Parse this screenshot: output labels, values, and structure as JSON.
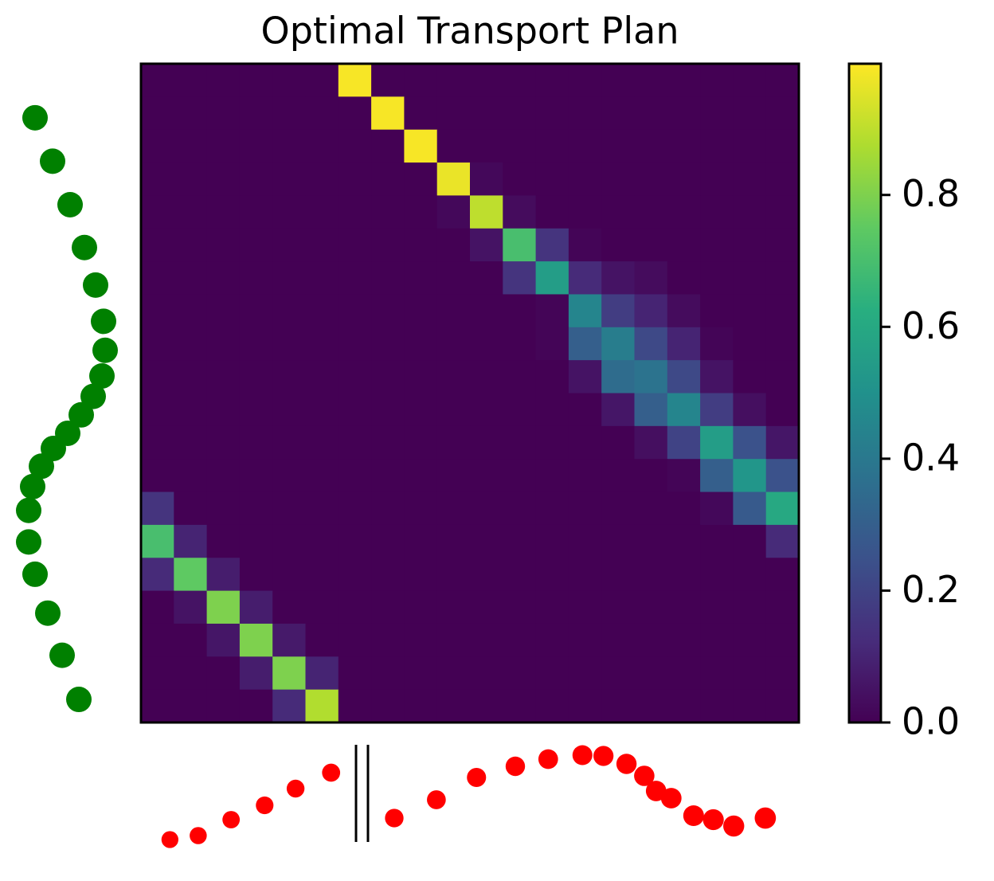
{
  "chart_data": {
    "type": "heatmap",
    "title": "Optimal Transport Plan",
    "matrix": [
      [
        0,
        0,
        0,
        0,
        0,
        0,
        0.99,
        0,
        0,
        0,
        0,
        0,
        0,
        0,
        0,
        0,
        0,
        0,
        0,
        0
      ],
      [
        0,
        0,
        0,
        0,
        0,
        0,
        0,
        0.99,
        0,
        0,
        0,
        0,
        0,
        0,
        0,
        0,
        0,
        0,
        0,
        0
      ],
      [
        0,
        0,
        0,
        0,
        0,
        0,
        0,
        0,
        0.99,
        0,
        0,
        0,
        0,
        0,
        0,
        0,
        0,
        0,
        0,
        0
      ],
      [
        0,
        0,
        0,
        0,
        0,
        0,
        0,
        0,
        0,
        0.97,
        0.02,
        0,
        0,
        0,
        0,
        0,
        0,
        0,
        0,
        0
      ],
      [
        0,
        0,
        0,
        0,
        0,
        0,
        0,
        0,
        0,
        0.02,
        0.9,
        0.03,
        0,
        0,
        0,
        0,
        0,
        0,
        0,
        0
      ],
      [
        0,
        0,
        0,
        0,
        0,
        0,
        0,
        0,
        0,
        0,
        0.05,
        0.7,
        0.15,
        0.01,
        0,
        0,
        0,
        0,
        0,
        0
      ],
      [
        0,
        0,
        0,
        0,
        0,
        0,
        0,
        0,
        0,
        0,
        0,
        0.15,
        0.55,
        0.12,
        0.05,
        0.03,
        0,
        0,
        0,
        0
      ],
      [
        0,
        0,
        0,
        0,
        0,
        0,
        0,
        0,
        0,
        0,
        0,
        0,
        0.01,
        0.45,
        0.18,
        0.1,
        0.03,
        0,
        0,
        0
      ],
      [
        0,
        0,
        0,
        0,
        0,
        0,
        0,
        0,
        0,
        0,
        0,
        0,
        0.01,
        0.3,
        0.42,
        0.22,
        0.1,
        0.01,
        0,
        0
      ],
      [
        0,
        0,
        0,
        0,
        0,
        0,
        0,
        0,
        0,
        0,
        0,
        0,
        0,
        0.05,
        0.35,
        0.38,
        0.22,
        0.05,
        0,
        0
      ],
      [
        0,
        0,
        0,
        0,
        0,
        0,
        0,
        0,
        0,
        0,
        0,
        0,
        0,
        0,
        0.06,
        0.3,
        0.45,
        0.18,
        0.04,
        0
      ],
      [
        0,
        0,
        0,
        0,
        0,
        0,
        0,
        0,
        0,
        0,
        0,
        0,
        0,
        0,
        0,
        0.04,
        0.2,
        0.55,
        0.25,
        0.06
      ],
      [
        0,
        0,
        0,
        0,
        0,
        0,
        0,
        0,
        0,
        0,
        0,
        0,
        0,
        0,
        0,
        0,
        0.01,
        0.3,
        0.52,
        0.25
      ],
      [
        0.15,
        0,
        0,
        0,
        0,
        0,
        0,
        0,
        0,
        0,
        0,
        0,
        0,
        0,
        0,
        0,
        0,
        0.02,
        0.28,
        0.6
      ],
      [
        0.7,
        0.1,
        0,
        0,
        0,
        0,
        0,
        0,
        0,
        0,
        0,
        0,
        0,
        0,
        0,
        0,
        0,
        0,
        0,
        0.12
      ],
      [
        0.12,
        0.75,
        0.08,
        0,
        0,
        0,
        0,
        0,
        0,
        0,
        0,
        0,
        0,
        0,
        0,
        0,
        0,
        0,
        0,
        0
      ],
      [
        0,
        0.05,
        0.8,
        0.08,
        0,
        0,
        0,
        0,
        0,
        0,
        0,
        0,
        0,
        0,
        0,
        0,
        0,
        0,
        0,
        0
      ],
      [
        0,
        0,
        0.06,
        0.8,
        0.07,
        0,
        0,
        0,
        0,
        0,
        0,
        0,
        0,
        0,
        0,
        0,
        0,
        0,
        0,
        0
      ],
      [
        0,
        0,
        0,
        0.08,
        0.8,
        0.1,
        0,
        0,
        0,
        0,
        0,
        0,
        0,
        0,
        0,
        0,
        0,
        0,
        0,
        0
      ],
      [
        0,
        0,
        0,
        0,
        0.12,
        0.88,
        0,
        0,
        0,
        0,
        0,
        0,
        0,
        0,
        0,
        0,
        0,
        0,
        0,
        0
      ]
    ],
    "clim": [
      0,
      0.999
    ],
    "cticks": [
      {
        "value": 0,
        "label": "0.0"
      },
      0.2,
      0.4,
      0.6,
      0.8
    ],
    "colormap": "viridis",
    "source": {
      "color": "#008000",
      "positions": [
        0.082,
        0.148,
        0.214,
        0.279,
        0.336,
        0.391,
        0.435,
        0.474,
        0.505,
        0.533,
        0.561,
        0.584,
        0.611,
        0.642,
        0.678,
        0.726,
        0.775,
        0.834,
        0.898,
        0.965
      ],
      "weights": [
        0.24,
        0.46,
        0.68,
        0.86,
        1.0,
        1.1,
        1.12,
        1.08,
        0.97,
        0.82,
        0.65,
        0.47,
        0.32,
        0.21,
        0.16,
        0.16,
        0.24,
        0.4,
        0.58,
        0.79
      ]
    },
    "target": {
      "color": "#ff0000",
      "positions": [
        0.044,
        0.087,
        0.137,
        0.188,
        0.235,
        0.289,
        0.385,
        0.449,
        0.51,
        0.569,
        0.619,
        0.671,
        0.703,
        0.738,
        0.765,
        0.783,
        0.806,
        0.84,
        0.87,
        0.901,
        0.949
      ],
      "weights": [
        0.06,
        0.11,
        0.31,
        0.49,
        0.7,
        0.9,
        0.33,
        0.56,
        0.84,
        0.98,
        1.07,
        1.12,
        1.11,
        1.01,
        0.86,
        0.67,
        0.58,
        0.36,
        0.31,
        0.23,
        0.33
      ]
    }
  }
}
